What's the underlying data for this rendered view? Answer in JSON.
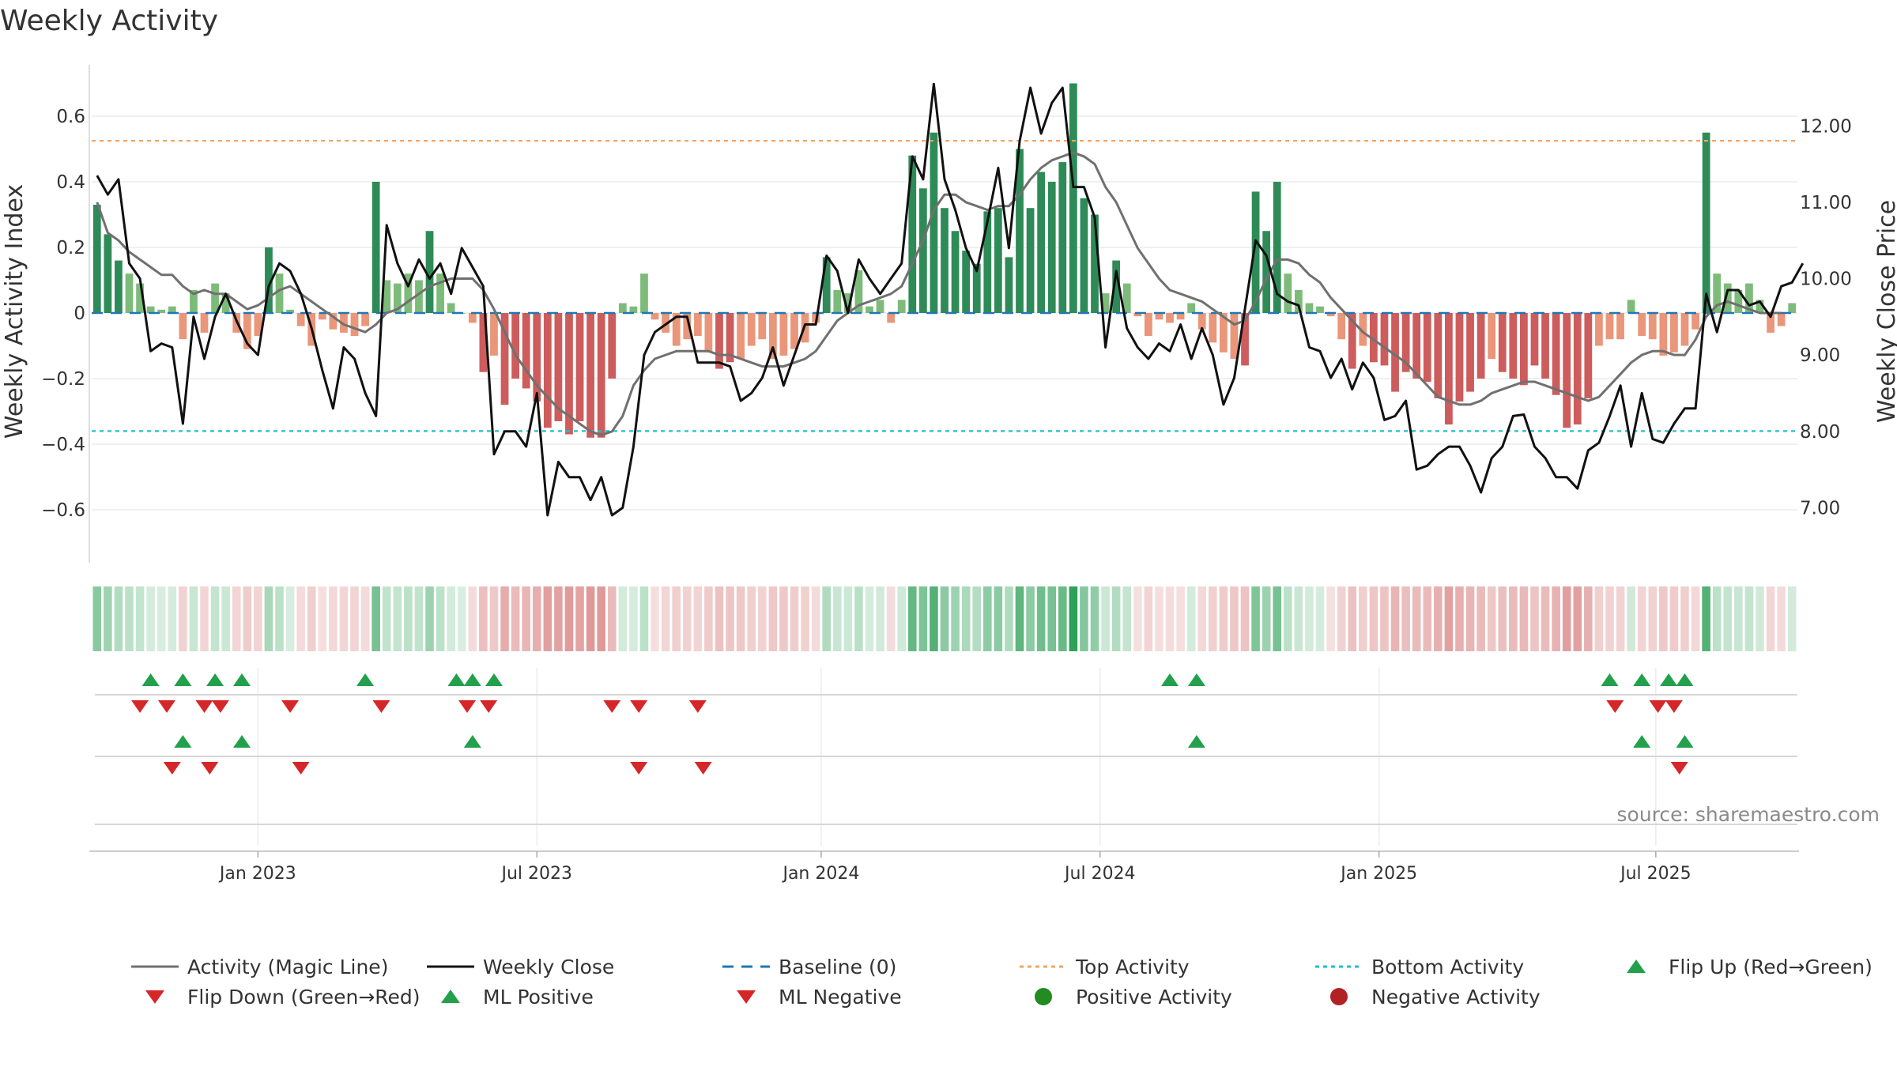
{
  "chart_data": {
    "type": "bar+line",
    "title": "Weekly Activity",
    "ylabel_left": "Weekly Activity Index",
    "ylabel_right": "Weekly Close Price",
    "source": "source: sharemaestro.com",
    "y_left_range": [
      -0.76,
      0.76
    ],
    "y_left_ticks": [
      0.6,
      0.4,
      0.2,
      0,
      -0.2,
      -0.4,
      -0.6
    ],
    "y_left_tick_labels": [
      "0.6",
      "0.4",
      "0.2",
      "0",
      "−0.2",
      "−0.4",
      "−0.6"
    ],
    "y_right_range": [
      6.3,
      12.8
    ],
    "y_right_ticks": [
      12.0,
      11.0,
      10.0,
      9.0,
      8.0,
      7.0
    ],
    "y_right_tick_labels": [
      "12.00",
      "11.00",
      "10.00",
      "9.00",
      "8.00",
      "7.00"
    ],
    "x_tick_labels": [
      "Jan 2023",
      "Jul 2023",
      "Jan 2024",
      "Jul 2024",
      "Jan 2025",
      "Jul 2025"
    ],
    "x_tick_weeks": [
      15,
      41,
      67.5,
      93.5,
      119.5,
      145.3
    ],
    "top_activity": 0.525,
    "bottom_activity": -0.36,
    "baseline": 0,
    "weekly_activity": [
      0.33,
      0.24,
      0.16,
      0.12,
      0.09,
      0.02,
      0.01,
      0.02,
      -0.08,
      0.07,
      -0.06,
      0.09,
      0.06,
      -0.06,
      -0.11,
      -0.07,
      0.2,
      0.12,
      0.01,
      -0.04,
      -0.1,
      -0.02,
      -0.05,
      -0.06,
      -0.07,
      -0.04,
      0.4,
      0.1,
      0.09,
      0.12,
      0.1,
      0.25,
      0.12,
      0.03,
      0.0,
      -0.03,
      -0.18,
      -0.13,
      -0.28,
      -0.2,
      -0.23,
      -0.27,
      -0.35,
      -0.33,
      -0.37,
      -0.33,
      -0.38,
      -0.38,
      -0.2,
      0.03,
      0.02,
      0.12,
      -0.02,
      -0.06,
      -0.1,
      -0.08,
      -0.07,
      -0.12,
      -0.17,
      -0.15,
      -0.14,
      -0.1,
      -0.08,
      -0.14,
      -0.13,
      -0.11,
      -0.09,
      -0.03,
      0.17,
      0.07,
      0.06,
      0.13,
      0.02,
      0.04,
      -0.03,
      0.04,
      0.48,
      0.38,
      0.55,
      0.32,
      0.25,
      0.19,
      0.15,
      0.31,
      0.32,
      0.17,
      0.5,
      0.32,
      0.43,
      0.4,
      0.46,
      0.7,
      0.35,
      0.3,
      0.06,
      0.16,
      0.09,
      -0.01,
      -0.07,
      -0.02,
      -0.03,
      -0.02,
      0.03,
      -0.05,
      -0.09,
      -0.12,
      -0.14,
      -0.16,
      0.37,
      0.25,
      0.4,
      0.12,
      0.07,
      0.03,
      0.02,
      -0.01,
      -0.08,
      -0.17,
      -0.1,
      -0.15,
      -0.16,
      -0.24,
      -0.18,
      -0.2,
      -0.21,
      -0.26,
      -0.34,
      -0.27,
      -0.24,
      -0.2,
      -0.14,
      -0.18,
      -0.2,
      -0.22,
      -0.16,
      -0.2,
      -0.25,
      -0.35,
      -0.34,
      -0.26,
      -0.1,
      -0.08,
      -0.08,
      0.04,
      -0.07,
      -0.08,
      -0.13,
      -0.12,
      -0.1,
      -0.05,
      0.55,
      0.12,
      0.09,
      0.07,
      0.09,
      0.04,
      -0.06,
      -0.04,
      0.03
    ],
    "weekly_close": [
      11.35,
      11.1,
      11.3,
      10.2,
      10.0,
      9.05,
      9.15,
      9.1,
      8.1,
      9.5,
      8.95,
      9.5,
      9.8,
      9.45,
      9.15,
      9.0,
      9.9,
      10.2,
      10.1,
      9.8,
      9.35,
      8.8,
      8.3,
      9.1,
      8.95,
      8.5,
      8.2,
      10.7,
      10.2,
      9.9,
      10.25,
      10.0,
      10.2,
      9.8,
      10.4,
      10.15,
      9.9,
      7.7,
      8.0,
      8.0,
      7.8,
      8.5,
      6.9,
      7.6,
      7.4,
      7.4,
      7.1,
      7.4,
      6.9,
      7.0,
      7.8,
      9.0,
      9.3,
      9.4,
      9.5,
      9.5,
      8.9,
      8.9,
      8.9,
      8.85,
      8.4,
      8.5,
      8.7,
      9.1,
      8.6,
      9.0,
      9.4,
      9.4,
      10.3,
      10.1,
      9.55,
      10.25,
      10.0,
      9.8,
      10.0,
      10.2,
      11.6,
      11.3,
      12.55,
      11.3,
      10.9,
      10.4,
      10.1,
      10.75,
      11.45,
      10.4,
      11.8,
      12.5,
      11.9,
      12.3,
      12.5,
      11.2,
      11.2,
      10.8,
      9.1,
      10.1,
      9.35,
      9.1,
      8.95,
      9.15,
      9.05,
      9.4,
      8.95,
      9.35,
      9.0,
      8.35,
      8.7,
      9.6,
      10.5,
      10.3,
      9.8,
      9.7,
      9.65,
      9.1,
      9.05,
      8.7,
      8.95,
      8.55,
      8.9,
      8.7,
      8.15,
      8.2,
      8.4,
      7.5,
      7.55,
      7.7,
      7.8,
      7.8,
      7.55,
      7.2,
      7.65,
      7.8,
      8.2,
      8.22,
      7.8,
      7.65,
      7.4,
      7.4,
      7.25,
      7.75,
      7.85,
      8.2,
      8.6,
      7.8,
      8.5,
      7.9,
      7.85,
      8.1,
      8.3,
      8.3,
      9.8,
      9.3,
      9.85,
      9.85,
      9.65,
      9.7,
      9.5,
      9.9,
      9.95,
      10.2
    ],
    "magic_line": [
      11.0,
      10.6,
      10.5,
      10.35,
      10.25,
      10.15,
      10.05,
      10.05,
      9.9,
      9.8,
      9.85,
      9.8,
      9.8,
      9.7,
      9.6,
      9.65,
      9.75,
      9.85,
      9.9,
      9.8,
      9.7,
      9.6,
      9.5,
      9.4,
      9.35,
      9.3,
      9.4,
      9.55,
      9.6,
      9.7,
      9.8,
      9.9,
      9.95,
      10.0,
      10.0,
      10.0,
      9.85,
      9.6,
      9.3,
      9.0,
      8.8,
      8.6,
      8.45,
      8.3,
      8.2,
      8.1,
      8.0,
      7.95,
      8.0,
      8.2,
      8.6,
      8.8,
      8.95,
      9.0,
      9.05,
      9.05,
      9.05,
      9.05,
      9.0,
      9.0,
      8.95,
      8.9,
      8.85,
      8.85,
      8.85,
      8.9,
      8.95,
      9.05,
      9.25,
      9.45,
      9.55,
      9.65,
      9.7,
      9.75,
      9.8,
      9.9,
      10.2,
      10.5,
      10.9,
      11.1,
      11.1,
      11.0,
      10.95,
      10.9,
      10.95,
      10.95,
      11.1,
      11.3,
      11.45,
      11.55,
      11.6,
      11.65,
      11.6,
      11.5,
      11.2,
      11.0,
      10.7,
      10.4,
      10.2,
      10.0,
      9.85,
      9.8,
      9.75,
      9.7,
      9.6,
      9.5,
      9.4,
      9.45,
      9.7,
      10.0,
      10.25,
      10.25,
      10.2,
      10.05,
      9.95,
      9.75,
      9.6,
      9.45,
      9.3,
      9.2,
      9.1,
      9.0,
      8.9,
      8.75,
      8.6,
      8.45,
      8.4,
      8.35,
      8.35,
      8.4,
      8.5,
      8.55,
      8.6,
      8.65,
      8.65,
      8.6,
      8.55,
      8.5,
      8.45,
      8.4,
      8.45,
      8.6,
      8.75,
      8.9,
      9.0,
      9.05,
      9.05,
      9.0,
      9.0,
      9.2,
      9.5,
      9.65,
      9.7,
      9.65,
      9.6,
      9.55,
      9.55,
      9.55
    ],
    "strip_row1_flip_up": [
      5,
      8,
      11,
      13.5,
      25,
      33.5,
      35,
      37,
      100,
      102.5,
      141,
      144,
      146.5,
      148
    ],
    "strip_row1_flip_down": [
      4,
      6.5,
      10,
      11.5,
      18,
      26.5,
      34.5,
      36.5,
      48,
      50.5,
      56,
      141.5,
      145.5,
      147
    ],
    "strip_row2_ml_positive": [
      8,
      13.5,
      35,
      102.5,
      144,
      148
    ],
    "strip_row2_ml_negative": [
      7,
      10.5,
      19,
      50.5,
      56.5,
      147.5
    ],
    "legend": [
      "Activity (Magic Line)",
      "Weekly Close",
      "Baseline (0)",
      "Top Activity",
      "Bottom Activity",
      "Flip Up (Red→Green)",
      "Flip Down (Green→Red)",
      "ML Positive",
      "ML Negative",
      "Positive Activity",
      "Negative Activity"
    ],
    "colors": {
      "pos_dark": "#2e8b57",
      "pos_light": "#7dbb7a",
      "neg_dark": "#cd5c5c",
      "neg_light": "#e9967a",
      "magic_line": "#707070",
      "close_line": "#111111",
      "baseline": "#1f77b4",
      "top_line": "#f4a460",
      "bottom_line": "#20c0c8",
      "marker_up": "#22a04b",
      "marker_down": "#d62728",
      "dot_pos": "#228b22",
      "dot_neg": "#b22222"
    }
  }
}
